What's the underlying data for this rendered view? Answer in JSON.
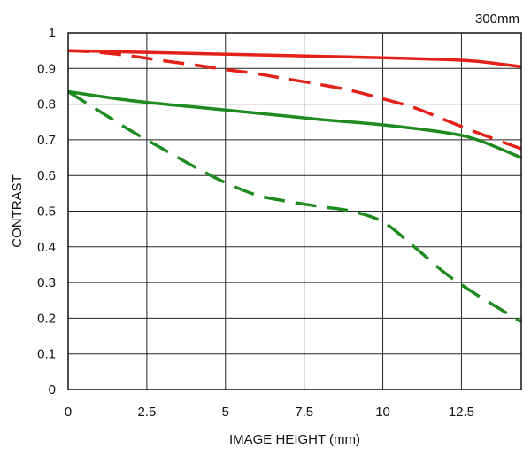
{
  "chart_data": {
    "type": "line",
    "title": "",
    "annotation": "300mm",
    "xlabel": "IMAGE HEIGHT (mm)",
    "ylabel": "CONTRAST",
    "xlim": [
      0,
      14.4
    ],
    "ylim": [
      0,
      1
    ],
    "x_ticks": [
      0,
      2.5,
      5,
      7.5,
      10,
      12.5
    ],
    "x_tick_labels": [
      "0",
      "2.5",
      "5",
      "7.5",
      "10",
      "12.5"
    ],
    "y_ticks": [
      0,
      0.1,
      0.2,
      0.3,
      0.4,
      0.5,
      0.6,
      0.7,
      0.8,
      0.9,
      1
    ],
    "y_tick_labels": [
      "0",
      "0.1",
      "0.2",
      "0.3",
      "0.4",
      "0.5",
      "0.6",
      "0.7",
      "0.8",
      "0.9",
      "1"
    ],
    "grid": true,
    "legend": "none",
    "series": [
      {
        "color": "#e32119",
        "dash": "solid",
        "x": [
          0,
          2,
          4,
          6,
          8,
          10,
          12,
          13,
          14.4
        ],
        "y": [
          0.95,
          0.946,
          0.942,
          0.938,
          0.934,
          0.93,
          0.925,
          0.92,
          0.905
        ]
      },
      {
        "color": "#e32119",
        "dash": "dashed",
        "x": [
          0,
          1,
          2,
          3,
          4,
          5,
          6,
          7,
          8,
          9,
          10,
          11,
          12,
          13,
          14.4
        ],
        "y": [
          0.95,
          0.945,
          0.935,
          0.922,
          0.91,
          0.897,
          0.885,
          0.87,
          0.855,
          0.838,
          0.815,
          0.79,
          0.755,
          0.72,
          0.675
        ]
      },
      {
        "color": "#1f8a1f",
        "dash": "solid",
        "x": [
          0,
          2,
          4,
          6,
          8,
          10,
          12,
          13,
          14.4
        ],
        "y": [
          0.835,
          0.81,
          0.792,
          0.775,
          0.757,
          0.742,
          0.72,
          0.7,
          0.65
        ]
      },
      {
        "color": "#1f8a1f",
        "dash": "dashed",
        "x": [
          0,
          1,
          2,
          3,
          4,
          5,
          6,
          7,
          8,
          9,
          10,
          11,
          12,
          13,
          14.4
        ],
        "y": [
          0.835,
          0.78,
          0.725,
          0.675,
          0.625,
          0.58,
          0.545,
          0.527,
          0.513,
          0.5,
          0.47,
          0.4,
          0.325,
          0.265,
          0.19
        ]
      }
    ]
  }
}
